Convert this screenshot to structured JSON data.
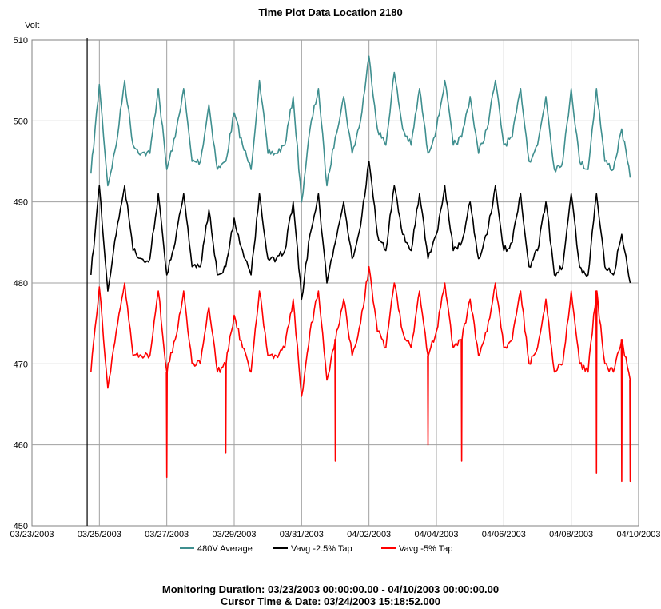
{
  "chart_data": {
    "type": "line",
    "title": "Time Plot Data Location 2180",
    "ylabel": "Volt",
    "xlabel": "",
    "ylim": [
      450,
      510
    ],
    "yticks": [
      450,
      460,
      470,
      480,
      490,
      500,
      510
    ],
    "xlim": [
      "03/23/2003",
      "04/10/2003"
    ],
    "xticks": [
      "03/23/2003",
      "03/25/2003",
      "03/27/2003",
      "03/29/2003",
      "03/31/2003",
      "04/02/2003",
      "04/04/2003",
      "04/06/2003",
      "04/08/2003",
      "04/10/2003"
    ],
    "grid": true,
    "legend_position": "bottom",
    "cursor_x": "03/24/2003 15:18:52",
    "series": [
      {
        "name": "480V Average",
        "color": "#3f8f8f",
        "x": [
          "03/24/2003 18:00",
          "03/25/2003 00:00",
          "03/25/2003 06:00",
          "03/25/2003 12:00",
          "03/25/2003 18:00",
          "03/26/2003 00:00",
          "03/26/2003 06:00",
          "03/26/2003 12:00",
          "03/26/2003 18:00",
          "03/27/2003 00:00",
          "03/27/2003 06:00",
          "03/27/2003 12:00",
          "03/27/2003 18:00",
          "03/28/2003 00:00",
          "03/28/2003 06:00",
          "03/28/2003 12:00",
          "03/28/2003 18:00",
          "03/29/2003 00:00",
          "03/29/2003 06:00",
          "03/29/2003 12:00",
          "03/29/2003 18:00",
          "03/30/2003 00:00",
          "03/30/2003 06:00",
          "03/30/2003 12:00",
          "03/30/2003 18:00",
          "03/31/2003 00:00",
          "03/31/2003 06:00",
          "03/31/2003 12:00",
          "03/31/2003 18:00",
          "04/01/2003 00:00",
          "04/01/2003 06:00",
          "04/01/2003 12:00",
          "04/01/2003 18:00",
          "04/02/2003 00:00",
          "04/02/2003 06:00",
          "04/02/2003 12:00",
          "04/02/2003 18:00",
          "04/03/2003 00:00",
          "04/03/2003 06:00",
          "04/03/2003 12:00",
          "04/03/2003 18:00",
          "04/04/2003 00:00",
          "04/04/2003 06:00",
          "04/04/2003 12:00",
          "04/04/2003 18:00",
          "04/05/2003 00:00",
          "04/05/2003 06:00",
          "04/05/2003 12:00",
          "04/05/2003 18:00",
          "04/06/2003 00:00",
          "04/06/2003 06:00",
          "04/06/2003 12:00",
          "04/06/2003 18:00",
          "04/07/2003 00:00",
          "04/07/2003 06:00",
          "04/07/2003 12:00",
          "04/07/2003 18:00",
          "04/08/2003 00:00",
          "04/08/2003 06:00",
          "04/08/2003 12:00",
          "04/08/2003 18:00",
          "04/09/2003 00:00",
          "04/09/2003 06:00",
          "04/09/2003 12:00",
          "04/09/2003 18:00"
        ],
        "values": [
          493.5,
          504.5,
          492,
          497,
          505,
          497,
          496,
          496,
          504,
          494,
          498,
          504,
          495,
          495,
          502,
          494,
          495,
          501,
          497,
          494,
          505,
          496,
          496,
          497,
          503,
          490,
          499,
          504,
          492,
          498,
          503,
          496,
          500,
          508,
          499,
          497,
          506,
          499,
          497,
          504,
          496,
          499,
          505,
          497,
          498,
          503,
          496,
          499,
          505,
          497,
          498,
          504,
          495,
          497,
          503,
          494,
          495,
          504,
          495,
          494,
          504,
          495,
          494,
          499,
          493
        ]
      },
      {
        "name": "Vavg -2.5% Tap",
        "color": "#000000",
        "x": [
          "03/24/2003 18:00",
          "03/25/2003 00:00",
          "03/25/2003 06:00",
          "03/25/2003 12:00",
          "03/25/2003 18:00",
          "03/26/2003 00:00",
          "03/26/2003 06:00",
          "03/26/2003 12:00",
          "03/26/2003 18:00",
          "03/27/2003 00:00",
          "03/27/2003 06:00",
          "03/27/2003 12:00",
          "03/27/2003 18:00",
          "03/28/2003 00:00",
          "03/28/2003 06:00",
          "03/28/2003 12:00",
          "03/28/2003 18:00",
          "03/29/2003 00:00",
          "03/29/2003 06:00",
          "03/29/2003 12:00",
          "03/29/2003 18:00",
          "03/30/2003 00:00",
          "03/30/2003 06:00",
          "03/30/2003 12:00",
          "03/30/2003 18:00",
          "03/31/2003 00:00",
          "03/31/2003 06:00",
          "03/31/2003 12:00",
          "03/31/2003 18:00",
          "04/01/2003 00:00",
          "04/01/2003 06:00",
          "04/01/2003 12:00",
          "04/01/2003 18:00",
          "04/02/2003 00:00",
          "04/02/2003 06:00",
          "04/02/2003 12:00",
          "04/02/2003 18:00",
          "04/03/2003 00:00",
          "04/03/2003 06:00",
          "04/03/2003 12:00",
          "04/03/2003 18:00",
          "04/04/2003 00:00",
          "04/04/2003 06:00",
          "04/04/2003 12:00",
          "04/04/2003 18:00",
          "04/05/2003 00:00",
          "04/05/2003 06:00",
          "04/05/2003 12:00",
          "04/05/2003 18:00",
          "04/06/2003 00:00",
          "04/06/2003 06:00",
          "04/06/2003 12:00",
          "04/06/2003 18:00",
          "04/07/2003 00:00",
          "04/07/2003 06:00",
          "04/07/2003 12:00",
          "04/07/2003 18:00",
          "04/08/2003 00:00",
          "04/08/2003 06:00",
          "04/08/2003 12:00",
          "04/08/2003 18:00",
          "04/09/2003 00:00",
          "04/09/2003 06:00",
          "04/09/2003 12:00",
          "04/09/2003 18:00"
        ],
        "values": [
          481,
          492,
          479,
          486,
          492,
          484,
          483,
          483,
          491,
          481,
          485,
          491,
          482,
          482,
          489,
          481,
          482,
          488,
          484,
          481,
          491,
          483,
          483,
          484,
          490,
          478,
          486,
          491,
          480,
          485,
          490,
          483,
          487,
          495,
          486,
          484,
          492,
          486,
          484,
          491,
          483,
          486,
          492,
          484,
          485,
          490,
          483,
          486,
          492,
          484,
          485,
          491,
          482,
          484,
          490,
          481,
          482,
          491,
          482,
          481,
          491,
          482,
          481,
          486,
          480
        ]
      },
      {
        "name": "Vavg -5% Tap",
        "color": "#ff0000",
        "x": [
          "03/24/2003 18:00",
          "03/25/2003 00:00",
          "03/25/2003 06:00",
          "03/25/2003 12:00",
          "03/25/2003 18:00",
          "03/26/2003 00:00",
          "03/26/2003 06:00",
          "03/26/2003 12:00",
          "03/26/2003 18:00",
          "03/27/2003 00:00",
          "03/27/2003 06:00",
          "03/27/2003 12:00",
          "03/27/2003 18:00",
          "03/28/2003 00:00",
          "03/28/2003 06:00",
          "03/28/2003 12:00",
          "03/28/2003 18:00",
          "03/29/2003 00:00",
          "03/29/2003 06:00",
          "03/29/2003 12:00",
          "03/29/2003 18:00",
          "03/30/2003 00:00",
          "03/30/2003 06:00",
          "03/30/2003 12:00",
          "03/30/2003 18:00",
          "03/31/2003 00:00",
          "03/31/2003 06:00",
          "03/31/2003 12:00",
          "03/31/2003 18:00",
          "04/01/2003 00:00",
          "04/01/2003 06:00",
          "04/01/2003 12:00",
          "04/01/2003 18:00",
          "04/02/2003 00:00",
          "04/02/2003 06:00",
          "04/02/2003 12:00",
          "04/02/2003 18:00",
          "04/03/2003 00:00",
          "04/03/2003 06:00",
          "04/03/2003 12:00",
          "04/03/2003 18:00",
          "04/04/2003 00:00",
          "04/04/2003 06:00",
          "04/04/2003 12:00",
          "04/04/2003 18:00",
          "04/05/2003 00:00",
          "04/05/2003 06:00",
          "04/05/2003 12:00",
          "04/05/2003 18:00",
          "04/06/2003 00:00",
          "04/06/2003 06:00",
          "04/06/2003 12:00",
          "04/06/2003 18:00",
          "04/07/2003 00:00",
          "04/07/2003 06:00",
          "04/07/2003 12:00",
          "04/07/2003 18:00",
          "04/08/2003 00:00",
          "04/08/2003 06:00",
          "04/08/2003 12:00",
          "04/08/2003 18:00",
          "04/09/2003 00:00",
          "04/09/2003 06:00",
          "04/09/2003 12:00",
          "04/09/2003 18:00"
        ],
        "values": [
          469,
          479.5,
          467,
          474,
          480,
          471,
          471,
          471,
          479,
          469,
          473,
          479,
          470,
          470,
          477,
          469,
          470,
          476,
          472,
          469,
          479,
          471,
          471,
          472,
          478,
          466,
          474,
          479,
          468,
          473,
          478,
          471,
          475,
          482,
          474,
          472,
          480,
          474,
          472,
          479,
          471,
          474,
          480,
          472,
          473,
          478,
          471,
          474,
          480,
          472,
          473,
          479,
          470,
          472,
          478,
          469,
          470,
          479,
          470,
          469,
          479,
          470,
          469,
          473,
          468
        ]
      }
    ],
    "dips": [
      {
        "series": 2,
        "x": "03/27/2003 00:00",
        "value": 456
      },
      {
        "series": 2,
        "x": "03/28/2003 18:00",
        "value": 459
      },
      {
        "series": 2,
        "x": "04/01/2003 00:00",
        "value": 458
      },
      {
        "series": 2,
        "x": "04/03/2003 18:00",
        "value": 460
      },
      {
        "series": 2,
        "x": "04/04/2003 18:00",
        "value": 458
      },
      {
        "series": 2,
        "x": "04/08/2003 18:00",
        "value": 456.5
      },
      {
        "series": 2,
        "x": "04/09/2003 12:00",
        "value": 455.5
      },
      {
        "series": 2,
        "x": "04/09/2003 18:00",
        "value": 455.5
      }
    ]
  },
  "footer": {
    "line1": "Monitoring Duration:  03/23/2003 00:00:00.00 - 04/10/2003 00:00:00.00",
    "line2": "Cursor Time & Date:  03/24/2003 15:18:52.000"
  }
}
